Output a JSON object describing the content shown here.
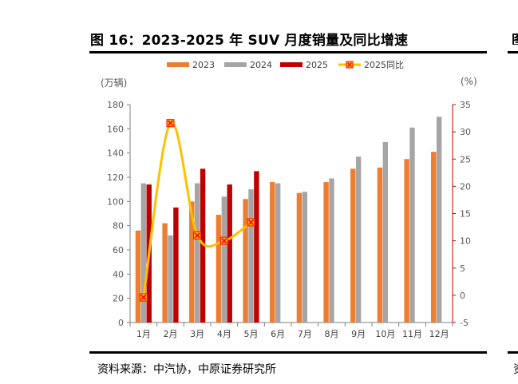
{
  "figure": {
    "title": "图 16：2023-2025 年 SUV 月度销量及同比增速",
    "source": "资料来源：中汽协，中原证券研究所",
    "right_fragment_top": "图",
    "right_fragment_bottom": "资"
  },
  "chart_data": {
    "type": "bar",
    "title": "",
    "categories": [
      "1月",
      "2月",
      "3月",
      "4月",
      "5月",
      "6月",
      "7月",
      "8月",
      "9月",
      "10月",
      "11月",
      "12月"
    ],
    "y_left_unit": "(万辆)",
    "y_right_unit": "(%)",
    "ylim_left": [
      0,
      180
    ],
    "yticks_left": [
      0,
      20,
      40,
      60,
      80,
      100,
      120,
      140,
      160,
      180
    ],
    "ylim_right": [
      -5,
      35
    ],
    "yticks_right": [
      -5,
      0,
      5,
      10,
      15,
      20,
      25,
      30,
      35
    ],
    "grid": false,
    "legend_position": "top",
    "series": [
      {
        "name": "2023",
        "type": "bar",
        "axis": "left",
        "color": "#ED7D31",
        "values": [
          76,
          82,
          100,
          89,
          102,
          116,
          107,
          116,
          127,
          128,
          135,
          141
        ]
      },
      {
        "name": "2024",
        "type": "bar",
        "axis": "left",
        "color": "#A5A5A5",
        "values": [
          115,
          72,
          115,
          104,
          110,
          115,
          108,
          119,
          137,
          149,
          161,
          170
        ]
      },
      {
        "name": "2025",
        "type": "bar",
        "axis": "left",
        "color": "#C00000",
        "values": [
          114,
          95,
          127,
          114,
          125,
          null,
          null,
          null,
          null,
          null,
          null,
          null
        ]
      },
      {
        "name": "2025同比",
        "type": "line",
        "axis": "right",
        "color": "#FFC000",
        "marker_color": "#FF0000",
        "values": [
          -0.4,
          31.6,
          11.0,
          10.0,
          13.4,
          null,
          null,
          null,
          null,
          null,
          null,
          null
        ]
      }
    ]
  }
}
